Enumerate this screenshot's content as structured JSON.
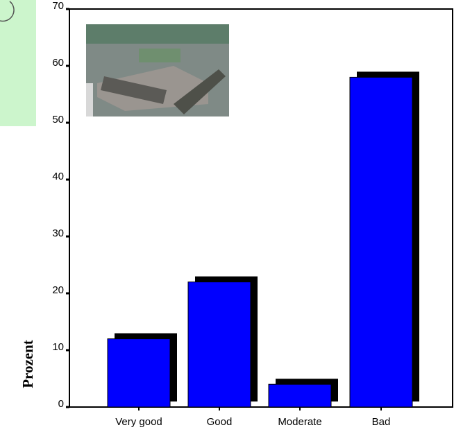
{
  "chart_data": {
    "type": "bar",
    "ylabel": "Prozent",
    "categories": [
      "Very good",
      "Good",
      "Moderate",
      "Bad"
    ],
    "values": [
      12,
      22,
      4,
      58
    ],
    "color": "#0000ff",
    "shadow_color": "#000000",
    "ylim": [
      0,
      70
    ],
    "yticks": [
      0,
      10,
      20,
      30,
      40,
      50,
      60,
      70
    ],
    "grid": false
  }
}
